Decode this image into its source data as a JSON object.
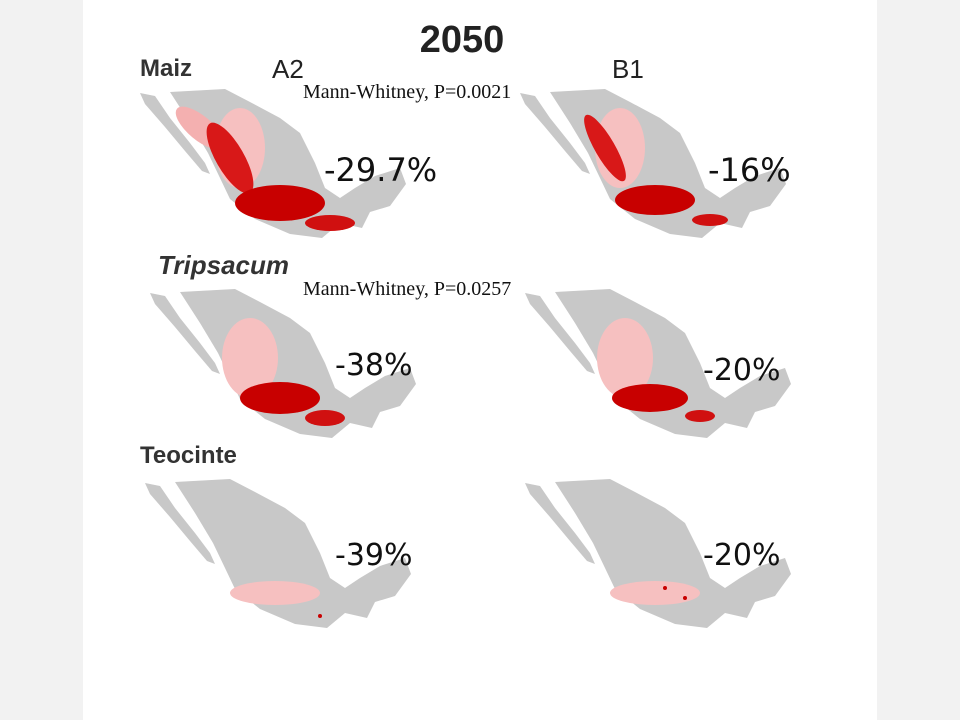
{
  "header": {
    "title": "2050"
  },
  "columns": [
    "A2",
    "B1"
  ],
  "groups": [
    {
      "label": "Maiz",
      "test": "Mann-Whitney, P=0.0021",
      "changes": [
        "-29.7%",
        "-16%"
      ]
    },
    {
      "label": "Tripsacum",
      "test": "Mann-Whitney, P=0.0257",
      "changes": [
        "-38%",
        "-20%"
      ]
    },
    {
      "label": "Teocinte",
      "changes": [
        "-39%",
        "-20%"
      ]
    }
  ]
}
